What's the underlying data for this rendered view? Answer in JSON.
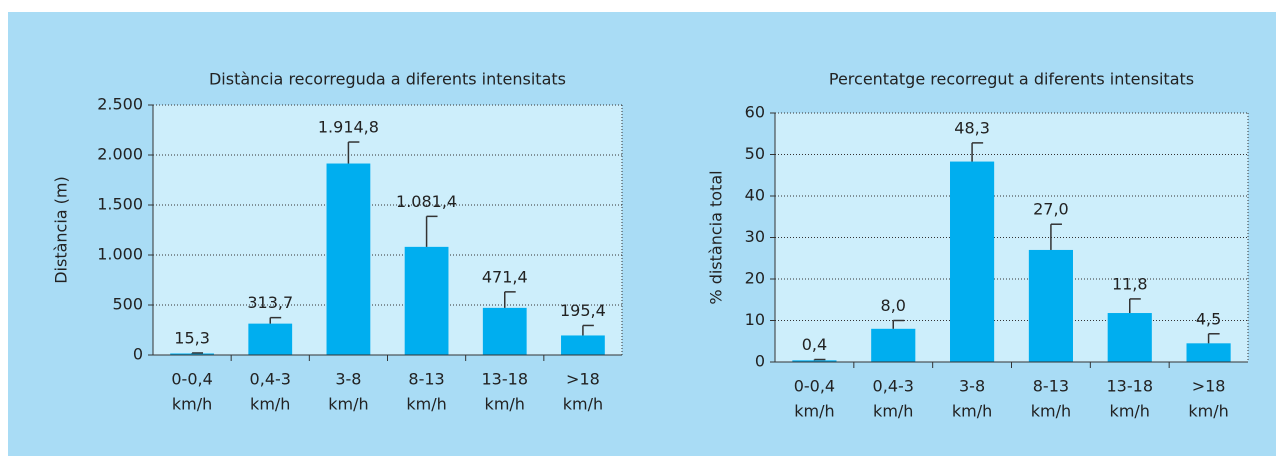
{
  "chart_data": [
    {
      "type": "bar",
      "title": "Distància recorreguda a diferents intensitats",
      "y_label": "Distància (m)",
      "categories": [
        [
          "0-0,4",
          "km/h"
        ],
        [
          "0,4-3",
          "km/h"
        ],
        [
          "3-8",
          "km/h"
        ],
        [
          "8-13",
          "km/h"
        ],
        [
          "13-18",
          "km/h"
        ],
        [
          ">18",
          "km/h"
        ]
      ],
      "values": [
        15.3,
        313.7,
        1914.8,
        1081.4,
        471.4,
        195.4
      ],
      "value_labels": [
        "15,3",
        "313,7",
        "1.914,8",
        "1.081,4",
        "471,4",
        "195,4"
      ],
      "errors": [
        5,
        60,
        215,
        305,
        160,
        100
      ],
      "color": "#00aeef",
      "ylim": [
        0,
        2500
      ],
      "yticks": [
        0,
        500,
        {
          "value": 1000,
          "label": "1.000"
        },
        {
          "value": 1500,
          "label": "1.500"
        },
        {
          "value": 2000,
          "label": "2.000"
        },
        {
          "value": 2500,
          "label": "2.500"
        }
      ],
      "grid": true
    },
    {
      "type": "bar",
      "title": "Percentatge recorregut a diferents intensitats",
      "y_label": "% distància total",
      "categories": [
        [
          "0-0,4",
          "km/h"
        ],
        [
          "0,4-3",
          "km/h"
        ],
        [
          "3-8",
          "km/h"
        ],
        [
          "8-13",
          "km/h"
        ],
        [
          "13-18",
          "km/h"
        ],
        [
          ">18",
          "km/h"
        ]
      ],
      "values": [
        0.4,
        8.0,
        48.3,
        27.0,
        11.8,
        4.5
      ],
      "value_labels": [
        "0,4",
        "8,0",
        "48,3",
        "27,0",
        "11,8",
        "4,5"
      ],
      "errors": [
        0.2,
        2,
        4.5,
        6.2,
        3.4,
        2.3
      ],
      "color": "#00aeef",
      "ylim": [
        0,
        60
      ],
      "yticks": [
        0,
        10,
        20,
        30,
        40,
        50,
        60
      ],
      "grid": true
    }
  ]
}
